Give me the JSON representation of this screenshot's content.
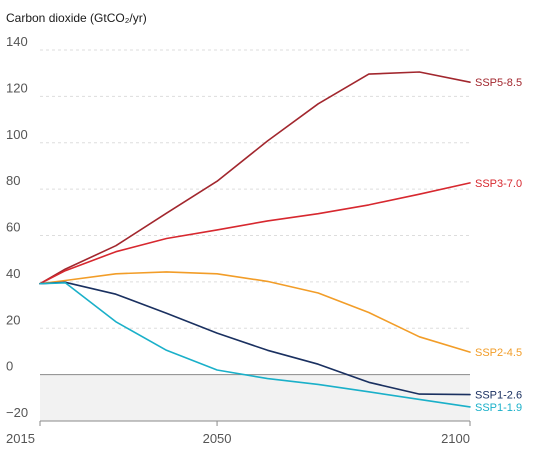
{
  "chart_data": {
    "type": "line",
    "title": "Carbon dioxide (GtCO₂/yr)",
    "xlabel": "",
    "ylabel": "",
    "xlim": [
      2015,
      2100
    ],
    "ylim": [
      -20,
      140
    ],
    "x_ticks": [
      "2015",
      "2050",
      "2100"
    ],
    "y_ticks": [
      "140",
      "120",
      "100",
      "80",
      "60",
      "40",
      "20",
      "0",
      "−20"
    ],
    "grid": true,
    "negative_region_shaded": true,
    "legend": "direct labels at right end of lines",
    "x": [
      2015,
      2020,
      2030,
      2040,
      2050,
      2060,
      2070,
      2080,
      2090,
      2100
    ],
    "series": [
      {
        "name": "SSP5-8.5",
        "color": "#a2272e",
        "values": [
          39.2,
          45.5,
          55.6,
          69.6,
          83.4,
          100.8,
          116.8,
          129.6,
          130.5,
          126.1
        ]
      },
      {
        "name": "SSP3-7.0",
        "color": "#d7282f",
        "values": [
          39.2,
          44.8,
          53.0,
          58.7,
          62.4,
          66.3,
          69.4,
          73.2,
          77.8,
          82.7
        ]
      },
      {
        "name": "SSP2-4.5",
        "color": "#f29d28",
        "values": [
          39.2,
          40.6,
          43.5,
          44.3,
          43.5,
          40.2,
          35.2,
          26.8,
          16.3,
          9.7
        ]
      },
      {
        "name": "SSP1-2.6",
        "color": "#1a3060",
        "values": [
          39.2,
          39.8,
          34.7,
          26.5,
          17.9,
          10.5,
          4.5,
          -3.3,
          -8.4,
          -8.6
        ]
      },
      {
        "name": "SSP1-1.9",
        "color": "#1ab0c9",
        "values": [
          39.2,
          39.6,
          22.8,
          10.5,
          2.0,
          -1.7,
          -4.2,
          -7.4,
          -10.7,
          -13.9
        ]
      }
    ]
  }
}
